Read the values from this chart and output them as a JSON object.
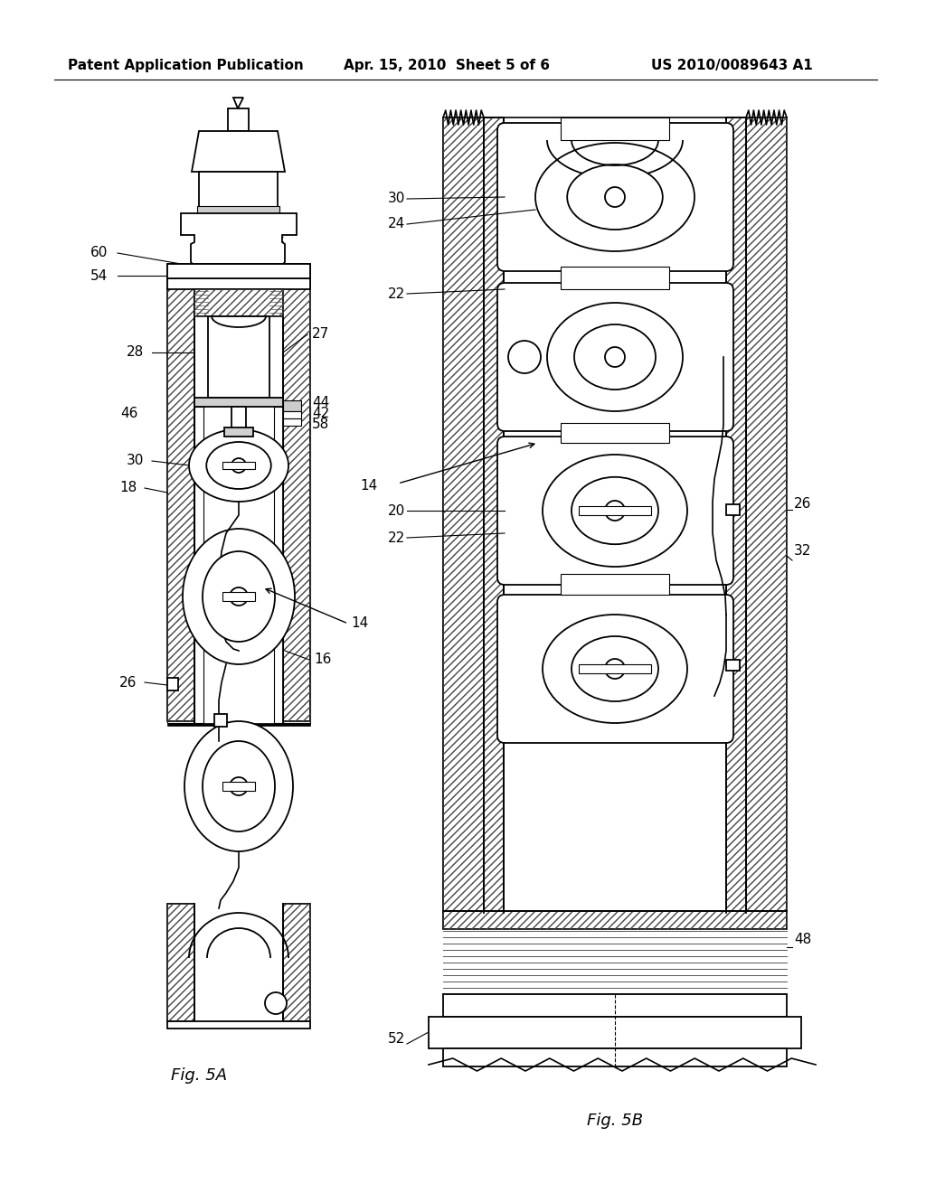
{
  "header_left": "Patent Application Publication",
  "header_center": "Apr. 15, 2010  Sheet 5 of 6",
  "header_right": "US 2010/0089643 A1",
  "fig_label_A": "Fig. 5A",
  "fig_label_B": "Fig. 5B",
  "bg_color": "#ffffff",
  "line_color": "#000000",
  "header_fontsize": 11,
  "label_fontsize": 13,
  "ref_fontsize": 11
}
